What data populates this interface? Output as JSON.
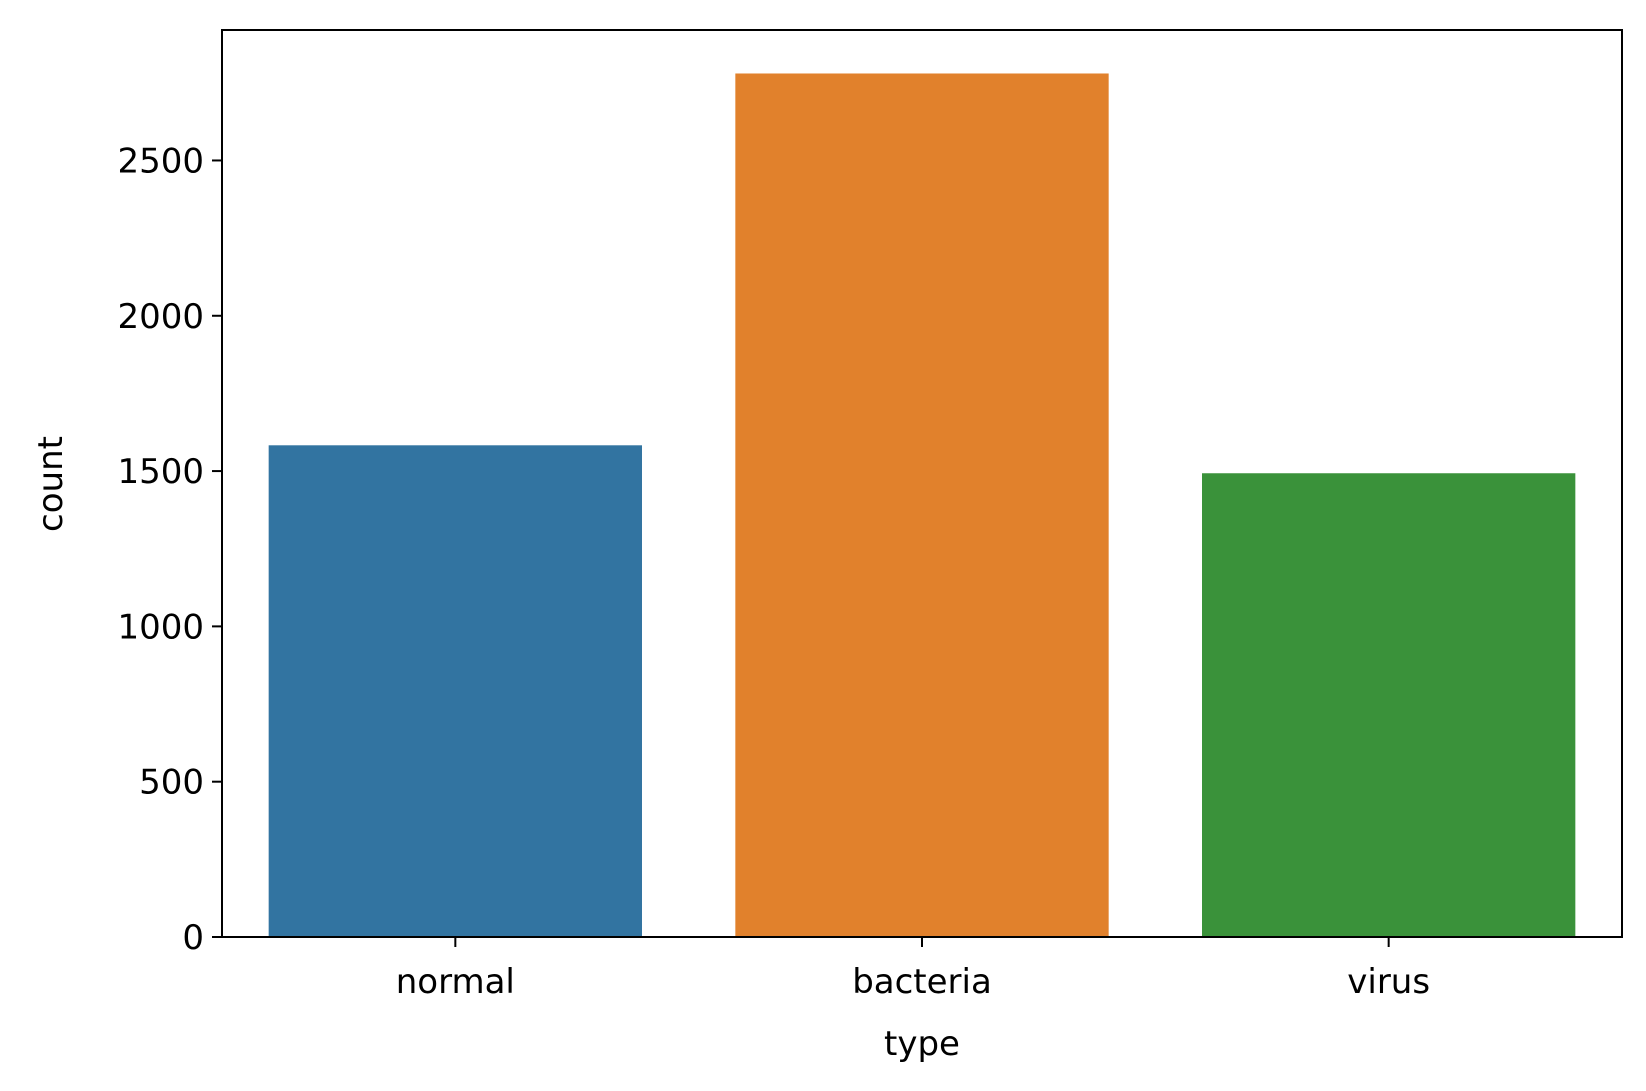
{
  "chart_data": {
    "type": "bar",
    "title": "",
    "xlabel": "type",
    "ylabel": "count",
    "categories": [
      "normal",
      "bacteria",
      "virus"
    ],
    "values": [
      1583,
      2780,
      1493
    ],
    "colors": [
      "#3274a1",
      "#e1812c",
      "#3a923a"
    ],
    "ylim": [
      0,
      2920
    ],
    "yticks": [
      0,
      500,
      1000,
      1500,
      2000,
      2500
    ],
    "grid": false,
    "legend": "none"
  }
}
